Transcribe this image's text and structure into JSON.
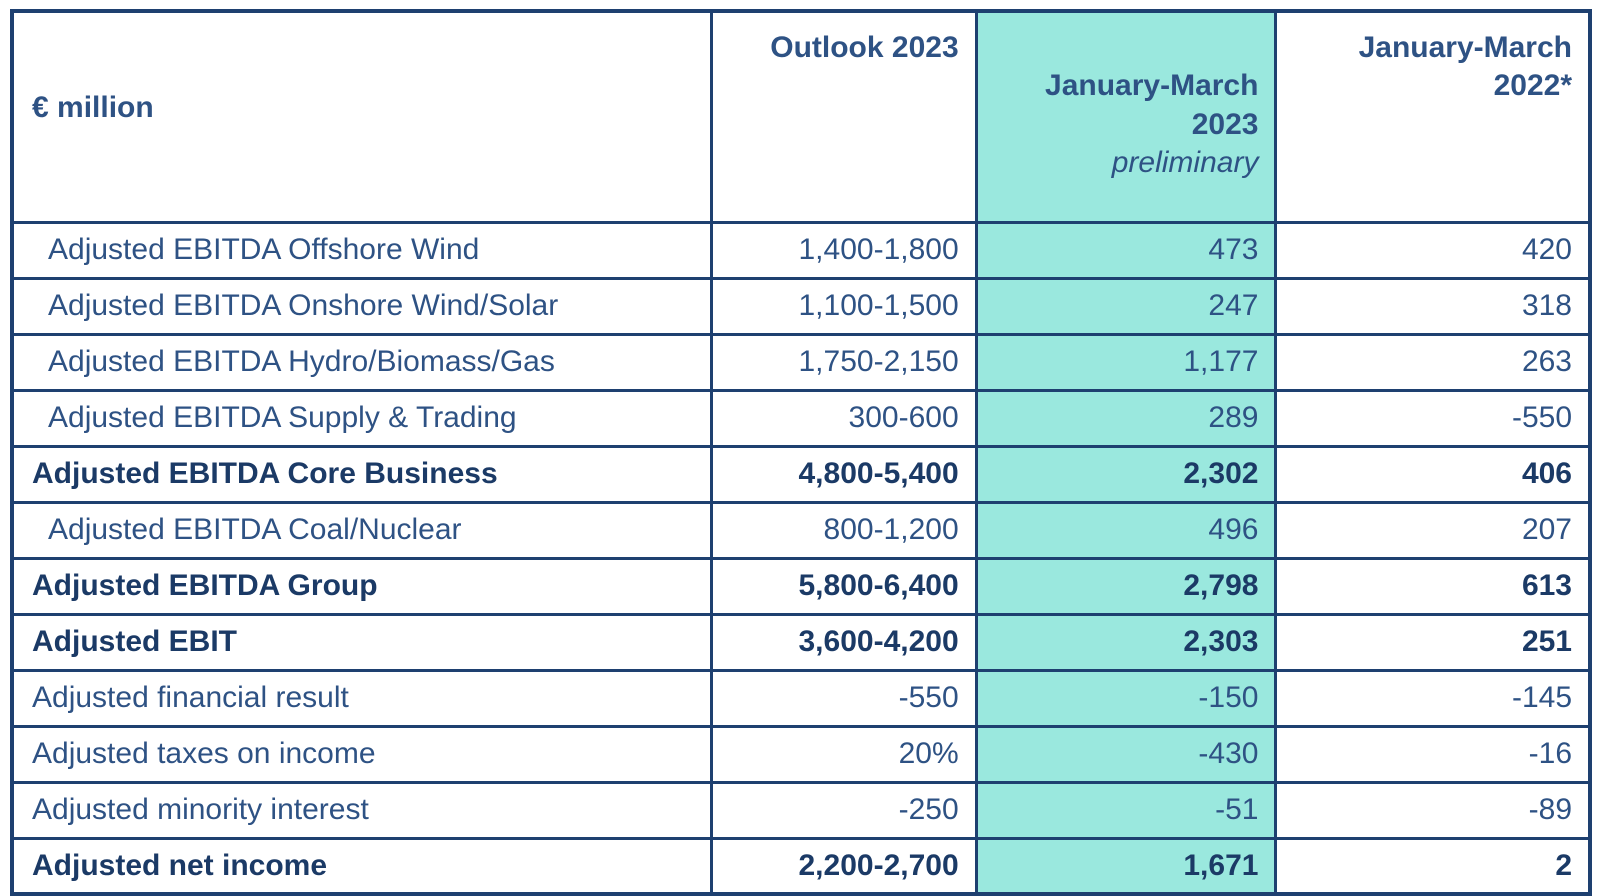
{
  "colors": {
    "border_navy": "#1E4070",
    "text_navy": "#2E5284",
    "text_navy_bold": "#1B3A66",
    "highlight_teal": "#9AE8DE",
    "background": "#FFFFFF"
  },
  "header": {
    "unit": "€ million",
    "outlook": "Outlook 2023",
    "current_line": "January-March\n2023",
    "current_note": "preliminary",
    "prior_line": "January-March\n2022*"
  },
  "chart_data": {
    "type": "table",
    "unit_label": "€ million",
    "columns": [
      "Outlook 2023",
      "January-March 2023",
      "January-March 2022*"
    ],
    "column_note": {
      "column": "January-March 2023",
      "text": "preliminary"
    },
    "highlighted_column": "January-March 2023",
    "rows": [
      {
        "label": "Adjusted EBITDA Offshore Wind",
        "values": [
          "1,400-1,800",
          "473",
          "420"
        ],
        "bold": false,
        "indent": true
      },
      {
        "label": "Adjusted EBITDA Onshore Wind/Solar",
        "values": [
          "1,100-1,500",
          "247",
          "318"
        ],
        "bold": false,
        "indent": true
      },
      {
        "label": "Adjusted EBITDA Hydro/Biomass/Gas",
        "values": [
          "1,750-2,150",
          "1,177",
          "263"
        ],
        "bold": false,
        "indent": true
      },
      {
        "label": "Adjusted EBITDA Supply & Trading",
        "values": [
          "300-600",
          "289",
          "-550"
        ],
        "bold": false,
        "indent": true
      },
      {
        "label": "Adjusted EBITDA Core Business",
        "values": [
          "4,800-5,400",
          "2,302",
          "406"
        ],
        "bold": true,
        "indent": false
      },
      {
        "label": "Adjusted EBITDA Coal/Nuclear",
        "values": [
          "800-1,200",
          "496",
          "207"
        ],
        "bold": false,
        "indent": true
      },
      {
        "label": "Adjusted EBITDA Group",
        "values": [
          "5,800-6,400",
          "2,798",
          "613"
        ],
        "bold": true,
        "indent": false
      },
      {
        "label": "Adjusted EBIT",
        "values": [
          "3,600-4,200",
          "2,303",
          "251"
        ],
        "bold": true,
        "indent": false
      },
      {
        "label": "Adjusted financial result",
        "values": [
          "-550",
          "-150",
          "-145"
        ],
        "bold": false,
        "indent": false
      },
      {
        "label": "Adjusted taxes on income",
        "values": [
          "20%",
          "-430",
          "-16"
        ],
        "bold": false,
        "indent": false
      },
      {
        "label": "Adjusted minority interest",
        "values": [
          "-250",
          "-51",
          "-89"
        ],
        "bold": false,
        "indent": false
      },
      {
        "label": "Adjusted net income",
        "values": [
          "2,200-2,700",
          "1,671",
          "2"
        ],
        "bold": true,
        "indent": false
      }
    ]
  }
}
